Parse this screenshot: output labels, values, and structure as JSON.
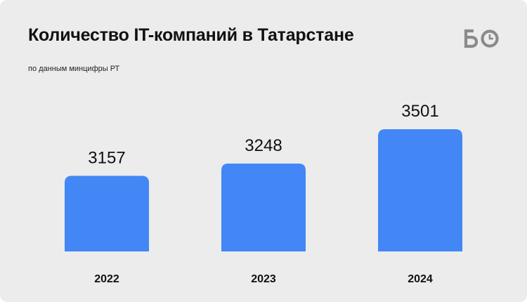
{
  "header": {
    "title": "Количество IT-компаний в Татарстане",
    "subtitle": "по данным минцифры РТ",
    "logo_text": "БО"
  },
  "colors": {
    "background": "#ececec",
    "bar": "#4287f5",
    "text": "#111111",
    "logo": "#8a8a8a"
  },
  "chart_data": {
    "type": "bar",
    "title": "Количество IT-компаний в Татарстане",
    "subtitle": "по данным минцифры РТ",
    "categories": [
      "2022",
      "2023",
      "2024"
    ],
    "values": [
      3157,
      3248,
      3501
    ],
    "xlabel": "",
    "ylabel": "",
    "grid": false,
    "legend": "none"
  }
}
